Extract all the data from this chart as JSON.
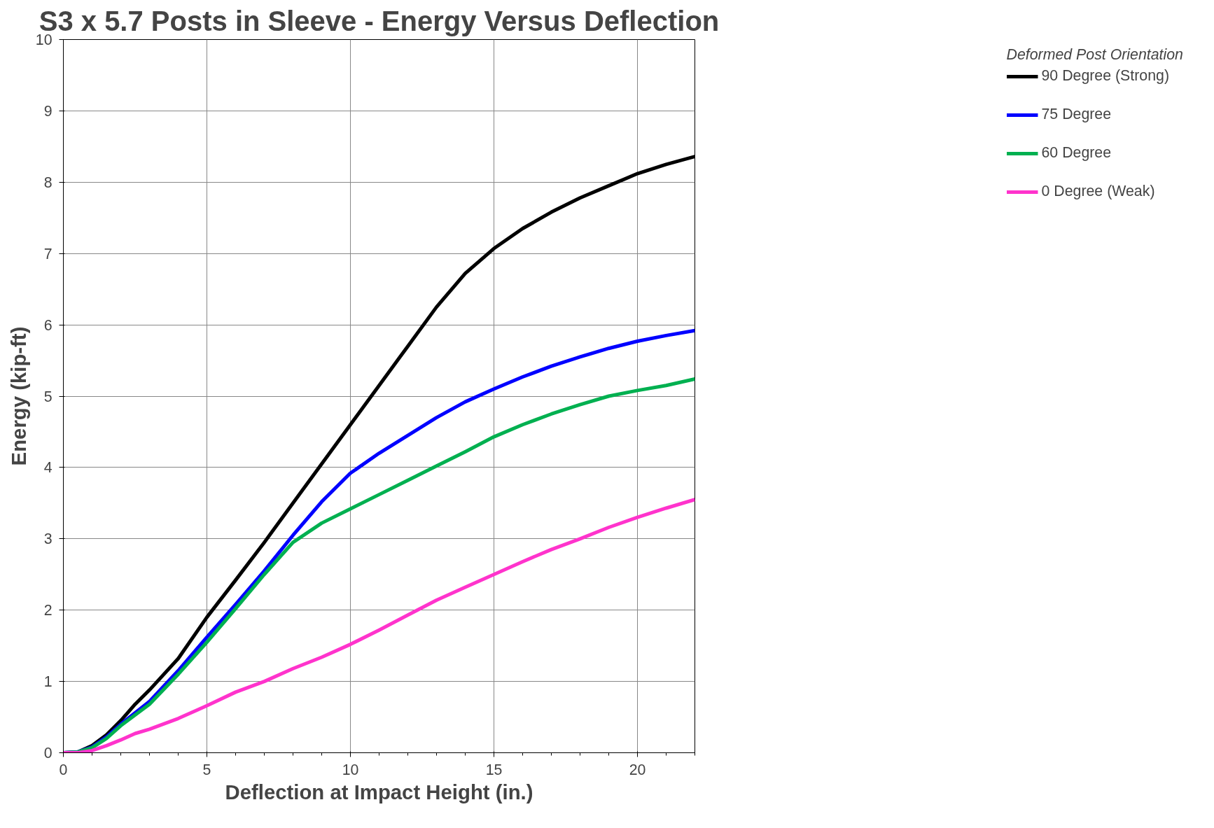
{
  "chart_data": {
    "type": "line",
    "title": "S3 x 5.7 Posts in Sleeve - Energy Versus Deflection",
    "xlabel": "Deflection at Impact Height (in.)",
    "ylabel": "Energy (kip-ft)",
    "legend_title": "Deformed Post Orientation",
    "legend": "right",
    "grid": true,
    "marker": "none",
    "line_style": "solid",
    "x": [
      0,
      0.5,
      1,
      1.5,
      2,
      2.5,
      3,
      4,
      5,
      6,
      7,
      8,
      9,
      10,
      11,
      12,
      13,
      14,
      15,
      16,
      17,
      18,
      19,
      20,
      21,
      22
    ],
    "xlim": [
      0,
      22
    ],
    "xticks": [
      0,
      5,
      10,
      15,
      20
    ],
    "ylim": [
      0,
      10
    ],
    "yticks": [
      0,
      1,
      2,
      3,
      4,
      5,
      6,
      7,
      8,
      9,
      10
    ],
    "series": [
      {
        "name": "90 Degree (Strong)",
        "color": "#000000",
        "values": [
          0,
          0.01,
          0.1,
          0.25,
          0.45,
          0.68,
          0.88,
          1.32,
          1.9,
          2.42,
          2.95,
          3.5,
          4.05,
          4.6,
          5.15,
          5.7,
          6.25,
          6.72,
          7.07,
          7.35,
          7.58,
          7.78,
          7.95,
          8.12,
          8.25,
          8.36
        ]
      },
      {
        "name": "75 Degree",
        "color": "#0000ff",
        "values": [
          0,
          0.01,
          0.08,
          0.22,
          0.4,
          0.56,
          0.72,
          1.15,
          1.62,
          2.08,
          2.55,
          3.05,
          3.52,
          3.92,
          4.2,
          4.45,
          4.7,
          4.92,
          5.1,
          5.27,
          5.42,
          5.55,
          5.67,
          5.77,
          5.85,
          5.92
        ]
      },
      {
        "name": "60 Degree",
        "color": "#00b050",
        "values": [
          0,
          0.01,
          0.07,
          0.2,
          0.38,
          0.53,
          0.68,
          1.1,
          1.55,
          2.02,
          2.5,
          2.95,
          3.22,
          3.42,
          3.62,
          3.82,
          4.02,
          4.22,
          4.43,
          4.6,
          4.75,
          4.88,
          5.0,
          5.08,
          5.15,
          5.24
        ]
      },
      {
        "name": "0 Degree (Weak)",
        "color": "#ff33cc",
        "values": [
          0,
          0.0,
          0.03,
          0.1,
          0.18,
          0.27,
          0.33,
          0.48,
          0.66,
          0.85,
          1.0,
          1.18,
          1.34,
          1.52,
          1.72,
          1.93,
          2.14,
          2.32,
          2.5,
          2.68,
          2.85,
          3.0,
          3.16,
          3.3,
          3.43,
          3.55
        ]
      }
    ]
  }
}
